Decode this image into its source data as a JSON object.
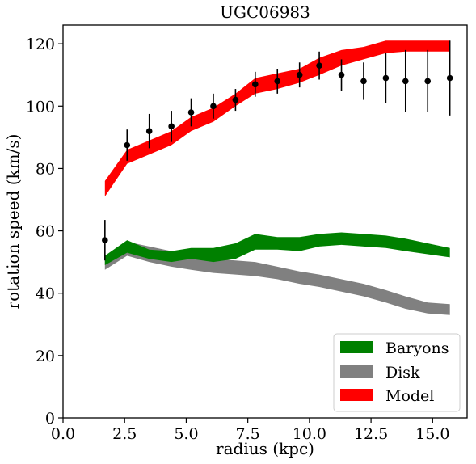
{
  "chart_data": {
    "type": "line",
    "title": "UGC06983",
    "xlabel": "radius (kpc)",
    "ylabel": "rotation speed (km/s)",
    "xlim": [
      0,
      16.4
    ],
    "ylim": [
      0,
      126
    ],
    "xticks": [
      0.0,
      2.5,
      5.0,
      7.5,
      10.0,
      12.5,
      15.0
    ],
    "xtick_labels": [
      "0.0",
      "2.5",
      "5.0",
      "7.5",
      "10.0",
      "12.5",
      "15.0"
    ],
    "yticks": [
      0,
      20,
      40,
      60,
      80,
      100,
      120
    ],
    "ytick_labels": [
      "0",
      "20",
      "40",
      "60",
      "80",
      "100",
      "120"
    ],
    "grid": false,
    "legend_position": "lower-right",
    "x": [
      1.7,
      2.6,
      3.5,
      4.4,
      5.2,
      6.1,
      7.0,
      7.8,
      8.7,
      9.6,
      10.4,
      11.3,
      12.2,
      13.1,
      13.9,
      14.8,
      15.7
    ],
    "observed": {
      "values": [
        57,
        87.5,
        92,
        93.5,
        98,
        100,
        102,
        107,
        108,
        110,
        113,
        110,
        108,
        109,
        108,
        108,
        109
      ],
      "errors": [
        6.5,
        5,
        5.5,
        5,
        4.5,
        4,
        3.5,
        4,
        4,
        4,
        4.5,
        5,
        6,
        8,
        10,
        10,
        12
      ],
      "color": "#000000"
    },
    "series": [
      {
        "name": "Baryons",
        "color": "#008000",
        "lower": [
          49,
          53,
          51,
          50,
          51,
          50,
          51,
          54,
          54,
          53.5,
          55,
          55.5,
          55,
          54.5,
          53.5,
          52.5,
          51.5
        ],
        "upper": [
          52,
          57,
          54,
          53.5,
          54.5,
          54.5,
          56,
          59,
          58,
          58,
          59,
          59.5,
          59,
          58.5,
          57.5,
          56,
          54.5
        ]
      },
      {
        "name": "Disk",
        "color": "#808080",
        "lower": [
          47.5,
          52,
          50,
          48.5,
          47.5,
          46.5,
          46,
          45.5,
          44.5,
          43,
          42,
          40.5,
          39,
          37,
          35,
          33.5,
          33
        ],
        "upper": [
          50.5,
          56.5,
          55,
          53.5,
          52,
          51,
          50.5,
          50,
          48.5,
          47,
          46,
          44.5,
          43,
          41,
          39,
          37,
          36.5
        ]
      },
      {
        "name": "Model",
        "color": "#ff0000",
        "lower": [
          71,
          81.5,
          84.5,
          87.5,
          92,
          95,
          100,
          104,
          105.5,
          107.5,
          110,
          113,
          115,
          117,
          117.5,
          117.5,
          117.5
        ],
        "upper": [
          76,
          86,
          89,
          92,
          96.5,
          99.5,
          104,
          109,
          110.5,
          112,
          115.5,
          118,
          119,
          121,
          121,
          121,
          121
        ]
      }
    ]
  }
}
